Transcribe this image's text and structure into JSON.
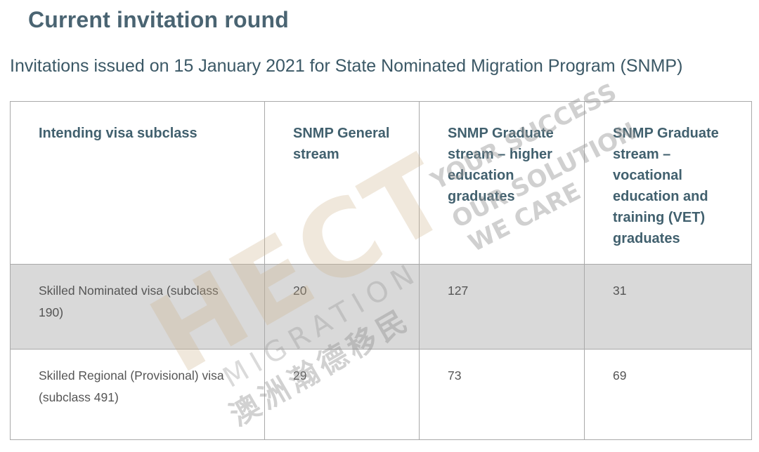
{
  "page": {
    "title": "Current invitation round",
    "subtitle": "Invitations issued on 15 January 2021 for State Nominated Migration Program (SNMP)"
  },
  "table": {
    "headers": [
      "Intending visa subclass",
      "SNMP General stream",
      "SNMP Graduate stream – higher education graduates",
      "SNMP Graduate stream – vocational education and training (VET) graduates"
    ],
    "rows": [
      {
        "visa": "Skilled Nominated visa (subclass 190)",
        "general": "20",
        "higher_ed": "127",
        "vet": "31"
      },
      {
        "visa": "Skilled Regional (Provisional) visa (subclass 491)",
        "general": "29",
        "higher_ed": "73",
        "vet": "69"
      }
    ]
  },
  "watermark": {
    "brand": "HECT",
    "sub": "MIGRATION",
    "chinese": "澳洲瀚德移民",
    "slogan_1": "YOUR SUCCESS",
    "slogan_2": "OUR SOLUTION",
    "slogan_3": "WE CARE"
  },
  "colors": {
    "heading": "#4a6472",
    "header_text": "#41606e",
    "shaded_row": "#d9d9d9",
    "border": "#a9a9a9"
  }
}
